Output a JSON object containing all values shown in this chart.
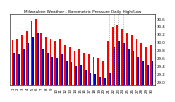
{
  "title": "Milwaukee Weather - Barometric Pressure Daily High/Low",
  "days": [
    "1",
    "2",
    "3",
    "4",
    "5",
    "6",
    "7",
    "8",
    "9",
    "10",
    "11",
    "12",
    "13",
    "14",
    "15",
    "16",
    "17",
    "18",
    "19",
    "20",
    "21",
    "22",
    "23",
    "24",
    "25",
    "26",
    "27",
    "28",
    "29",
    "30"
  ],
  "highs": [
    30.05,
    30.08,
    30.18,
    30.28,
    30.52,
    30.58,
    30.22,
    30.12,
    30.08,
    30.02,
    30.08,
    29.92,
    29.88,
    29.78,
    29.82,
    29.72,
    29.68,
    29.62,
    29.58,
    29.52,
    30.02,
    30.38,
    30.42,
    30.32,
    30.22,
    30.18,
    30.08,
    29.98,
    29.88,
    29.92
  ],
  "lows": [
    29.72,
    29.68,
    29.82,
    29.98,
    30.12,
    30.22,
    29.82,
    29.72,
    29.62,
    29.58,
    29.68,
    29.52,
    29.48,
    29.38,
    29.42,
    29.28,
    29.22,
    29.18,
    29.12,
    29.08,
    29.22,
    29.88,
    30.02,
    29.98,
    29.82,
    29.78,
    29.62,
    29.52,
    29.42,
    29.52
  ],
  "high_color": "#ff0000",
  "low_color": "#0000cc",
  "background_color": "#ffffff",
  "ylim_min": 28.9,
  "ylim_max": 30.7,
  "yticks": [
    29.0,
    29.2,
    29.4,
    29.6,
    29.8,
    30.0,
    30.2,
    30.4,
    30.6
  ],
  "dotted_cols": [
    20,
    21,
    22,
    23
  ],
  "bar_width": 0.38,
  "title_fontsize": 3.0,
  "tick_fontsize": 2.8
}
